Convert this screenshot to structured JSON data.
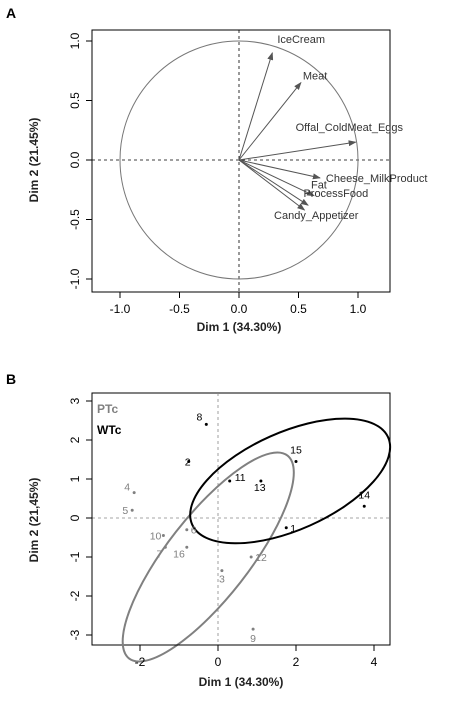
{
  "panels": [
    {
      "label": "A",
      "xlabel": "Dim 1 (34.30%)",
      "ylabel": "Dim 2 (21.45%)",
      "xticks": [
        "-1.0",
        "-0.5",
        "0.0",
        "0.5",
        "1.0"
      ],
      "yticks": [
        "-1.0",
        "-0.5",
        "0.0",
        "0.5",
        "1.0"
      ]
    },
    {
      "label": "B",
      "xlabel": "Dim 1 (34.30%)",
      "ylabel": "Dim 2 (21,45%)",
      "xticks": [
        "-2",
        "0",
        "2",
        "4"
      ],
      "yticks": [
        "-3",
        "-2",
        "-1",
        "0",
        "1",
        "2",
        "3"
      ],
      "legend": [
        "PTc",
        "WTc"
      ]
    }
  ],
  "chart_data": [
    {
      "type": "scatter",
      "subtype": "variables factor map (correlation circle)",
      "xlabel": "Dim 1 (34.30%)",
      "ylabel": "Dim 2 (21.45%)",
      "xlim": [
        -1.0,
        1.0
      ],
      "ylim": [
        -1.0,
        1.0
      ],
      "grid": false,
      "vectors": [
        {
          "name": "IceCream",
          "x": 0.28,
          "y": 0.9
        },
        {
          "name": "Meat",
          "x": 0.52,
          "y": 0.65
        },
        {
          "name": "Offal_ColdMeat_Eggs",
          "x": 0.98,
          "y": 0.15
        },
        {
          "name": "Cheese_MilkProduct",
          "x": 0.68,
          "y": -0.15
        },
        {
          "name": "Fat",
          "x": 0.63,
          "y": -0.3
        },
        {
          "name": "ProcessFood",
          "x": 0.55,
          "y": -0.42
        },
        {
          "name": "Candy_Appetizer",
          "x": 0.58,
          "y": -0.38
        }
      ],
      "colors": {
        "arrows": "#555555",
        "circle": "#777777"
      }
    },
    {
      "type": "scatter",
      "subtype": "individuals factor map with group ellipses",
      "xlabel": "Dim 1 (34.30%)",
      "ylabel": "Dim 2 (21,45%)",
      "xlim": [
        -2.6,
        4.6
      ],
      "ylim": [
        -3.3,
        3.1
      ],
      "grid": false,
      "legend_position": "top-left",
      "series": [
        {
          "name": "PTc",
          "color": "#808080",
          "points": [
            {
              "label": "4",
              "x": -2.15,
              "y": 0.65
            },
            {
              "label": "5",
              "x": -2.2,
              "y": 0.2
            },
            {
              "label": "6",
              "x": -0.8,
              "y": -0.3
            },
            {
              "label": "10",
              "x": -1.4,
              "y": -0.45
            },
            {
              "label": "7",
              "x": -1.35,
              "y": -0.75
            },
            {
              "label": "16",
              "x": -0.8,
              "y": -0.75
            },
            {
              "label": "12",
              "x": 0.85,
              "y": -1.0
            },
            {
              "label": "3",
              "x": 0.1,
              "y": -1.35
            },
            {
              "label": "9",
              "x": 0.9,
              "y": -2.85
            }
          ],
          "ellipse": {
            "cx": -0.25,
            "cy": -1.0,
            "rx": 3.3,
            "ry": 1.05,
            "angle_deg": -52
          }
        },
        {
          "name": "WTc",
          "color": "#000000",
          "points": [
            {
              "label": "8",
              "x": -0.3,
              "y": 2.4
            },
            {
              "label": "2",
              "x": -0.75,
              "y": 1.45
            },
            {
              "label": "11",
              "x": 0.3,
              "y": 0.95
            },
            {
              "label": "13",
              "x": 1.1,
              "y": 0.95
            },
            {
              "label": "15",
              "x": 2.0,
              "y": 1.45
            },
            {
              "label": "14",
              "x": 3.75,
              "y": 0.3
            },
            {
              "label": "1",
              "x": 1.75,
              "y": -0.25
            }
          ],
          "ellipse": {
            "cx": 1.85,
            "cy": 0.95,
            "rx": 2.75,
            "ry": 1.25,
            "angle_deg": -24
          }
        }
      ]
    }
  ]
}
